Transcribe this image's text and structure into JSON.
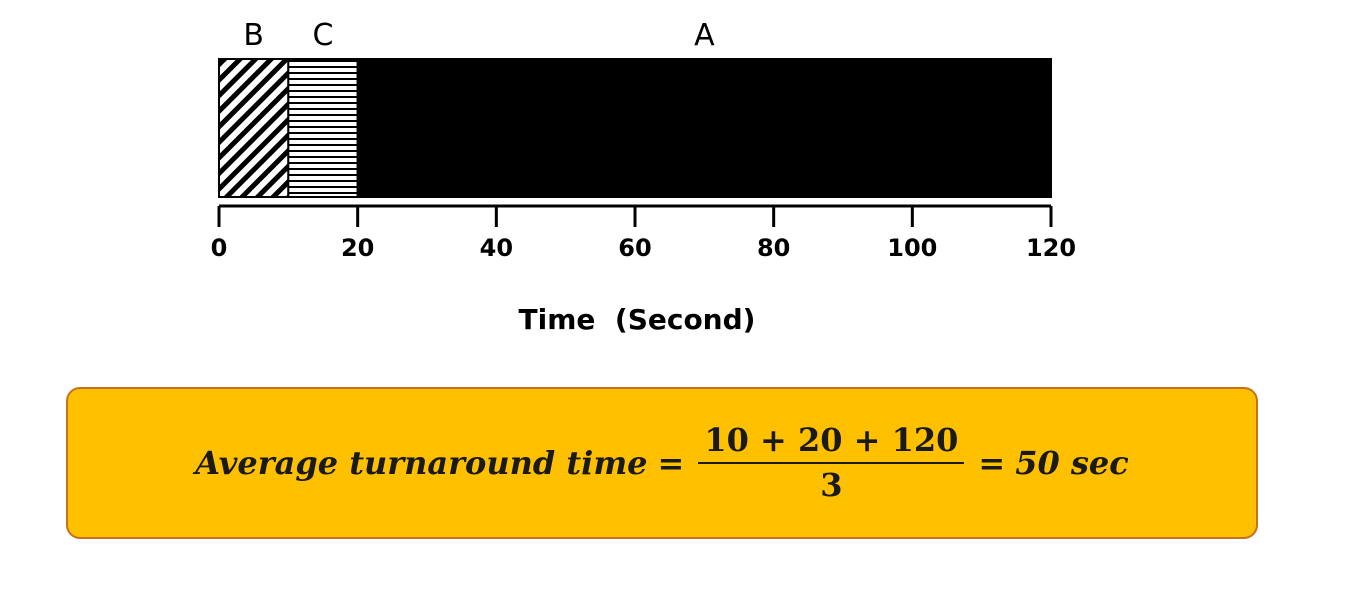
{
  "chart_data": {
    "type": "gantt",
    "segments": [
      {
        "label": "B",
        "start": 0,
        "end": 10,
        "pattern": "diagonal-hatch"
      },
      {
        "label": "C",
        "start": 10,
        "end": 20,
        "pattern": "horizontal-lines"
      },
      {
        "label": "A",
        "start": 20,
        "end": 120,
        "pattern": "solid-black"
      }
    ],
    "x_ticks": [
      0,
      20,
      40,
      60,
      80,
      100,
      120
    ],
    "tick_labels": [
      "0",
      "20",
      "40",
      "60",
      "80",
      "100",
      "120"
    ],
    "xlim": [
      0,
      120
    ],
    "xlabel": "Time  (Second)"
  },
  "formula": {
    "lhs": "Average turnaround time",
    "equals_1": "=",
    "numerator": "10 + 20 + 120",
    "denominator": "3",
    "equals_2": "=",
    "result": "50 sec"
  },
  "colors": {
    "box_fill": "#FFC000",
    "box_border": "#C5711E",
    "bar": "#000000"
  }
}
